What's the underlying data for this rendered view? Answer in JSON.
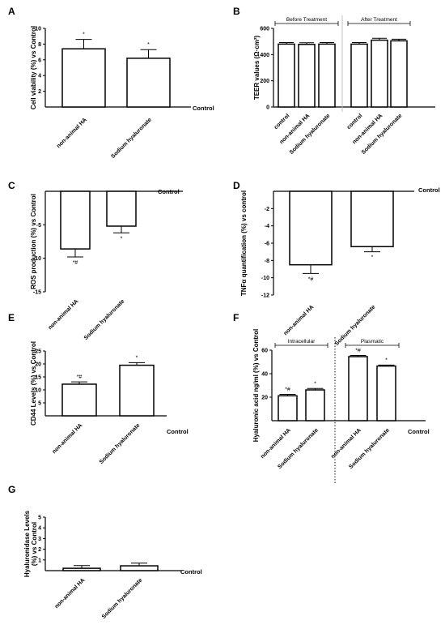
{
  "chart_data": [
    {
      "panel": "A",
      "type": "bar",
      "ylabel": "Cell viability (%) vs Control",
      "baseline_label": "Control",
      "categories": [
        "non-animal HA",
        "Sodium hyaluronate"
      ],
      "values": [
        7.4,
        6.2
      ],
      "errors": [
        1.2,
        1.1
      ],
      "annotations": [
        "*",
        "*"
      ],
      "ylim": [
        0,
        10
      ],
      "yticks": [
        "2",
        "4",
        "6",
        "8",
        "10"
      ]
    },
    {
      "panel": "B",
      "type": "bar",
      "ylabel": "TEER values (Ω·cm²)",
      "categories": [
        "control",
        "non-animal HA",
        "Sodium hyaluronate",
        "control",
        "non-animal HA",
        "Sodium hyaluronate"
      ],
      "groups": [
        {
          "label": "Before Treatment",
          "values": [
            480,
            478,
            480
          ]
        },
        {
          "label": "After Treatment",
          "values": [
            480,
            510,
            505
          ]
        }
      ],
      "errors": [
        12,
        12,
        12,
        12,
        14,
        12
      ],
      "ylim": [
        0,
        600
      ],
      "yticks": [
        "0",
        "200",
        "400",
        "600"
      ]
    },
    {
      "panel": "C",
      "type": "bar",
      "ylabel": "ROS production (%) vs Control",
      "baseline_label": "Control",
      "categories": [
        "non-animal HA",
        "Sodium hyaluronate"
      ],
      "values": [
        -8.6,
        -5.2
      ],
      "errors": [
        1.2,
        1.0
      ],
      "annotations": [
        "*#",
        "*"
      ],
      "ylim": [
        -15,
        0
      ],
      "yticks": [
        "-5",
        "-10",
        "-15"
      ]
    },
    {
      "panel": "D",
      "type": "bar",
      "ylabel": "TNFα quantification (%) vs control",
      "baseline_label": "Control",
      "categories": [
        "non-animal HA",
        "Sodium hyaluronate"
      ],
      "values": [
        -8.5,
        -6.4
      ],
      "errors": [
        1.0,
        0.6
      ],
      "annotations": [
        "*#",
        "*"
      ],
      "ylim": [
        -12,
        0
      ],
      "yticks": [
        "-2",
        "-4",
        "-6",
        "-8",
        "-10",
        "-12"
      ]
    },
    {
      "panel": "E",
      "type": "bar",
      "ylabel": "CD44 Levels (%) vs Control",
      "baseline_label": "Control",
      "categories": [
        "non-animal HA",
        "Sodium hyaluronate"
      ],
      "values": [
        12.2,
        19.5
      ],
      "errors": [
        0.9,
        1.0
      ],
      "annotations": [
        "*#",
        "*"
      ],
      "ylim": [
        0,
        25
      ],
      "yticks": [
        "5",
        "10",
        "15",
        "20",
        "25"
      ]
    },
    {
      "panel": "F",
      "type": "bar",
      "ylabel": "Hyaluronic acid ng/ml (%) vs Control",
      "baseline_label": "Control",
      "categories": [
        "non-animal HA",
        "Sodium hyaluronate",
        "non-animal HA",
        "Sodium hyaluronate"
      ],
      "groups": [
        {
          "label": "Intracellular",
          "values": [
            21.2,
            26.2
          ]
        },
        {
          "label": "Plasmatic",
          "values": [
            54.5,
            46.5
          ]
        }
      ],
      "errors": [
        1.2,
        1.2,
        1.0,
        0.8
      ],
      "annotations": [
        "*#",
        "*",
        "*#",
        "*"
      ],
      "ylim": [
        0,
        60
      ],
      "yticks": [
        "20",
        "40",
        "60"
      ]
    },
    {
      "panel": "G",
      "type": "bar",
      "ylabel_lines": [
        "Hyaluronidase Levels",
        "(%) vs Control"
      ],
      "baseline_label": "Control",
      "categories": [
        "non-animal HA",
        "Sodium hyaluronate"
      ],
      "values": [
        0.22,
        0.45
      ],
      "errors": [
        0.25,
        0.25
      ],
      "ylim": [
        0,
        5
      ],
      "yticks": [
        "1",
        "2",
        "3",
        "4",
        "5"
      ]
    }
  ]
}
